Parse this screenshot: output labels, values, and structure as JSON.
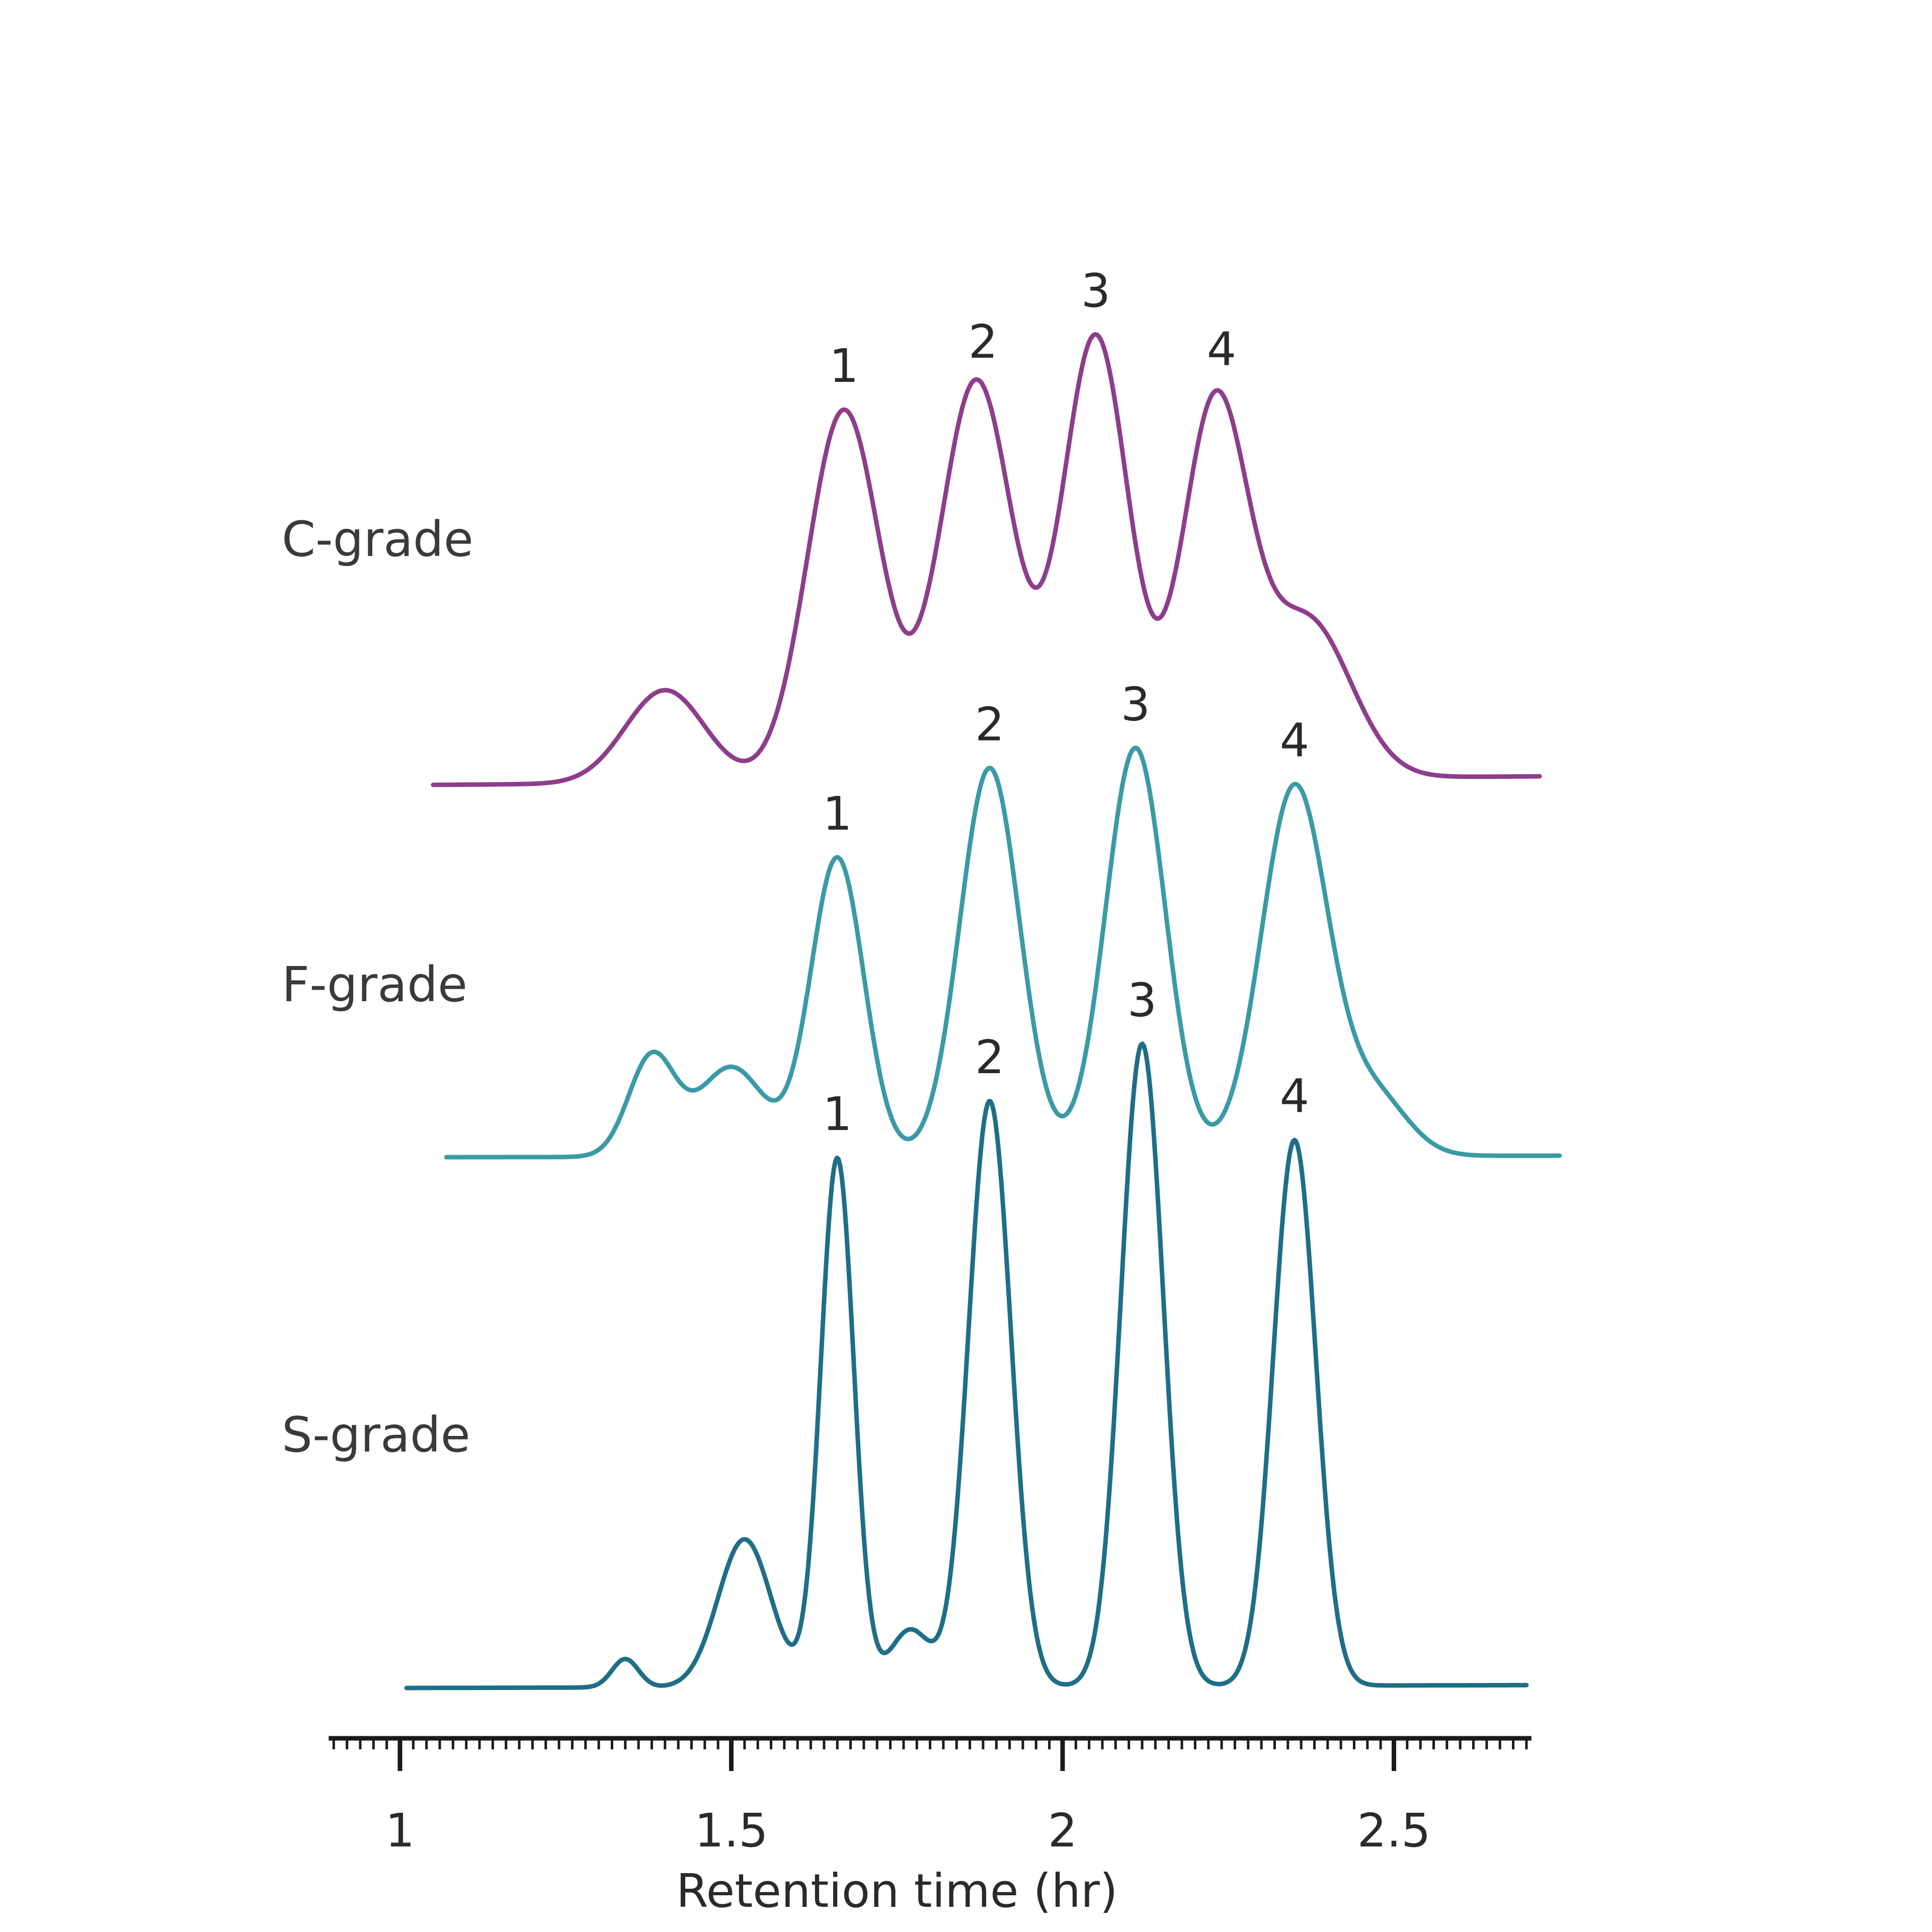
{
  "chart_data": {
    "type": "line",
    "title": "",
    "xlabel": "Retention time (hr)",
    "ylabel": "",
    "xlim": [
      0.9,
      2.7
    ],
    "x_ticks": [
      1,
      1.5,
      2,
      2.5
    ],
    "x_tick_labels": [
      "1",
      "1.5",
      "2",
      "2.5"
    ],
    "grid": false,
    "legend": "none (series labelled directly at left)",
    "series": [
      {
        "name": "C-grade",
        "color": "#8e3d8c",
        "x_range": [
          1.05,
          2.72
        ],
        "baseline": 0,
        "start_level": 0,
        "end_level": 0.012,
        "peaks": [
          {
            "label": "1",
            "x": 1.67,
            "height": 0.69
          },
          {
            "label": "2",
            "x": 1.88,
            "height": 0.86
          },
          {
            "label": "3",
            "x": 2.05,
            "height": 1.0
          },
          {
            "label": "4",
            "x": 2.24,
            "height": 0.92
          }
        ],
        "components": [
          {
            "center": 1.4,
            "sigma": 0.06,
            "amplitude": 0.13
          },
          {
            "center": 1.67,
            "sigma": 0.055,
            "amplitude": 0.52
          },
          {
            "center": 1.87,
            "sigma": 0.055,
            "amplitude": 0.56
          },
          {
            "center": 2.05,
            "sigma": 0.05,
            "amplitude": 0.62
          },
          {
            "center": 2.23,
            "sigma": 0.05,
            "amplitude": 0.52
          },
          {
            "center": 2.37,
            "sigma": 0.065,
            "amplitude": 0.22
          }
        ]
      },
      {
        "name": "F-grade",
        "color": "#3a9aa6",
        "x_range": [
          1.07,
          2.75
        ],
        "baseline": 0,
        "start_level": 0,
        "end_level": 0.003,
        "peaks": [
          {
            "label": "1",
            "x": 1.66,
            "height": 0.78
          },
          {
            "label": "2",
            "x": 1.89,
            "height": 0.92
          },
          {
            "label": "3",
            "x": 2.11,
            "height": 0.96
          },
          {
            "label": "4",
            "x": 2.35,
            "height": 0.87
          }
        ],
        "components": [
          {
            "center": 1.38,
            "sigma": 0.035,
            "amplitude": 0.2
          },
          {
            "center": 1.5,
            "sigma": 0.05,
            "amplitude": 0.18
          },
          {
            "center": 1.66,
            "sigma": 0.04,
            "amplitude": 0.6
          },
          {
            "center": 1.89,
            "sigma": 0.045,
            "amplitude": 0.78
          },
          {
            "center": 2.11,
            "sigma": 0.045,
            "amplitude": 0.82
          },
          {
            "center": 2.35,
            "sigma": 0.05,
            "amplitude": 0.74
          },
          {
            "center": 2.47,
            "sigma": 0.05,
            "amplitude": 0.12
          }
        ]
      },
      {
        "name": "S-grade",
        "color": "#1f6e88",
        "x_range": [
          1.01,
          2.7
        ],
        "baseline": 0,
        "start_level": 0,
        "end_level": 0.005,
        "peaks": [
          {
            "label": "1",
            "x": 1.66,
            "height": 0.98
          },
          {
            "label": "2",
            "x": 1.89,
            "height": 1.06
          },
          {
            "label": "3",
            "x": 2.12,
            "height": 1.16
          },
          {
            "label": "4",
            "x": 2.35,
            "height": 0.98
          }
        ],
        "components": [
          {
            "center": 1.34,
            "sigma": 0.02,
            "amplitude": 0.05
          },
          {
            "center": 1.52,
            "sigma": 0.04,
            "amplitude": 0.26
          },
          {
            "center": 1.66,
            "sigma": 0.025,
            "amplitude": 0.93
          },
          {
            "center": 1.77,
            "sigma": 0.03,
            "amplitude": 0.1
          },
          {
            "center": 1.89,
            "sigma": 0.032,
            "amplitude": 1.03
          },
          {
            "center": 2.12,
            "sigma": 0.032,
            "amplitude": 1.13
          },
          {
            "center": 2.35,
            "sigma": 0.032,
            "amplitude": 0.96
          }
        ]
      }
    ]
  }
}
